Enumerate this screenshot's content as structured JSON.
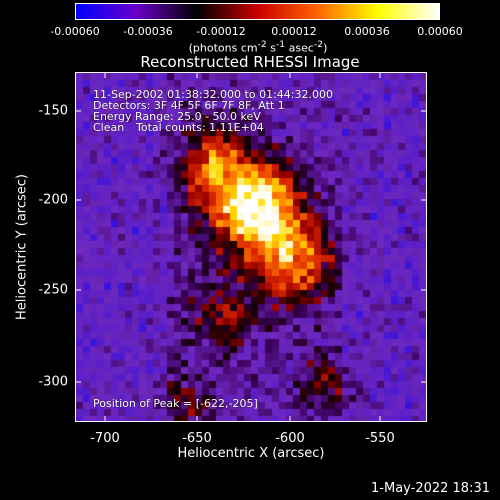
{
  "colorbar": {
    "ticks": [
      "-0.00060",
      "-0.00036",
      "-0.00012",
      "0.00012",
      "0.00036",
      "0.00060"
    ],
    "units_html": "(photons cm<sup>-2</sup> s<sup>-1</sup> asec<sup>-2</sup>)",
    "units": "(photons cm-2 s-1 asec-2)"
  },
  "plot": {
    "title": "Reconstructed RHESSI Image",
    "info": {
      "time_range": "11-Sep-2002 01:38:32.000 to 01:44:32.000",
      "detectors": "Detectors: 3F 4F 5F 6F 7F 8F, Att 1",
      "energy_range": "Energy Range: 25.0 - 50.0 keV",
      "algorithm": "Clean",
      "total_counts": "Total counts: 1.11E+04",
      "peak": "Position of Peak = [-622,-205]"
    },
    "xlabel": "Heliocentric X (arcsec)",
    "ylabel": "Heliocentric Y (arcsec)",
    "xticks": [
      "-700",
      "-650",
      "-600",
      "-550"
    ],
    "yticks": [
      "-150",
      "-200",
      "-250",
      "-300"
    ]
  },
  "footer": {
    "timestamp": "1-May-2022 18:31"
  },
  "chart_data": {
    "type": "heatmap",
    "title": "Reconstructed RHESSI Image",
    "xlabel": "Heliocentric X (arcsec)",
    "ylabel": "Heliocentric Y (arcsec)",
    "xlim": [
      -717,
      -527
    ],
    "ylim": [
      -323,
      -133
    ],
    "color_range": [
      -0.0006,
      0.0006
    ],
    "peak": {
      "x": -622,
      "y": -205
    },
    "colormap": [
      "#0000ff",
      "#6a00c8",
      "#000000",
      "#cc0000",
      "#ff6600",
      "#ffff00",
      "#ffffff"
    ]
  }
}
